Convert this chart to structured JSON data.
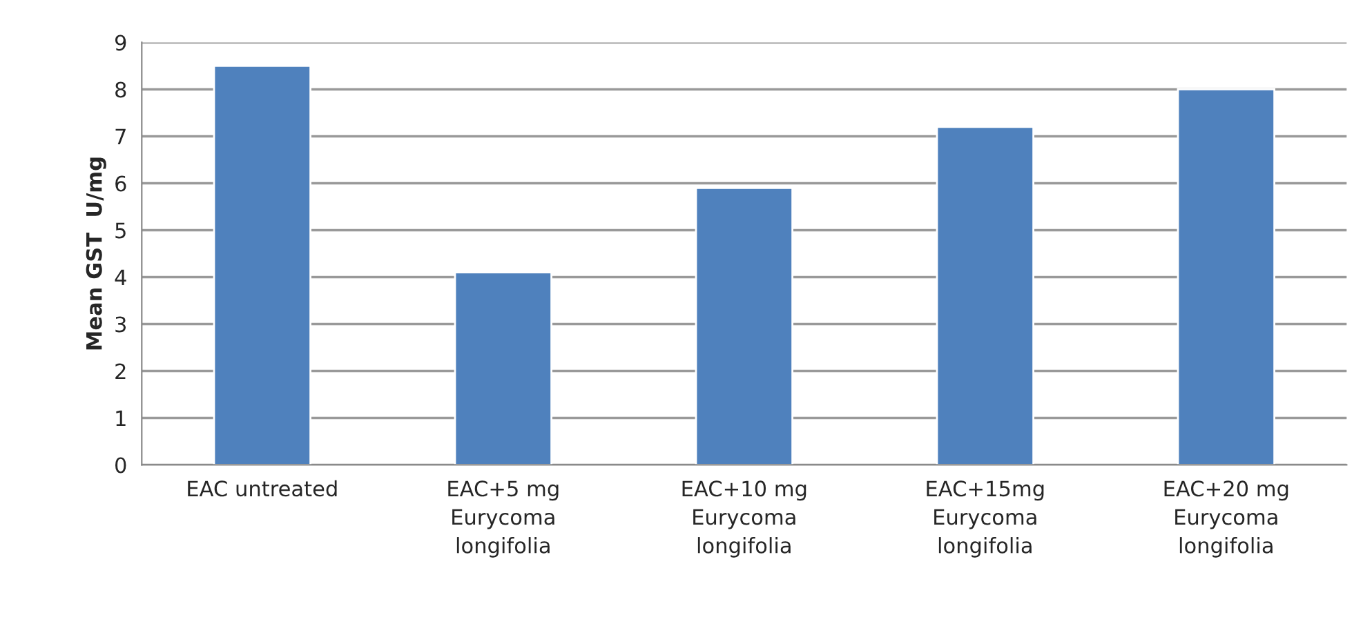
{
  "chart_data": {
    "type": "bar",
    "categories": [
      "EAC untreated",
      "EAC+5 mg\nEurycoma\nlongifolia",
      "EAC+10 mg\nEurycoma\nlongifolia",
      "EAC+15mg\nEurycoma\nlongifolia",
      "EAC+20 mg\nEurycoma\nlongifolia"
    ],
    "values": [
      8.5,
      4.1,
      5.9,
      7.2,
      8.0
    ],
    "color": "#4f81bd",
    "ylabel": "Mean GST  U/mg",
    "ylim": [
      0,
      9
    ],
    "yticks": [
      0,
      1,
      2,
      3,
      4,
      5,
      6,
      7,
      8,
      9
    ],
    "grid": "y"
  }
}
